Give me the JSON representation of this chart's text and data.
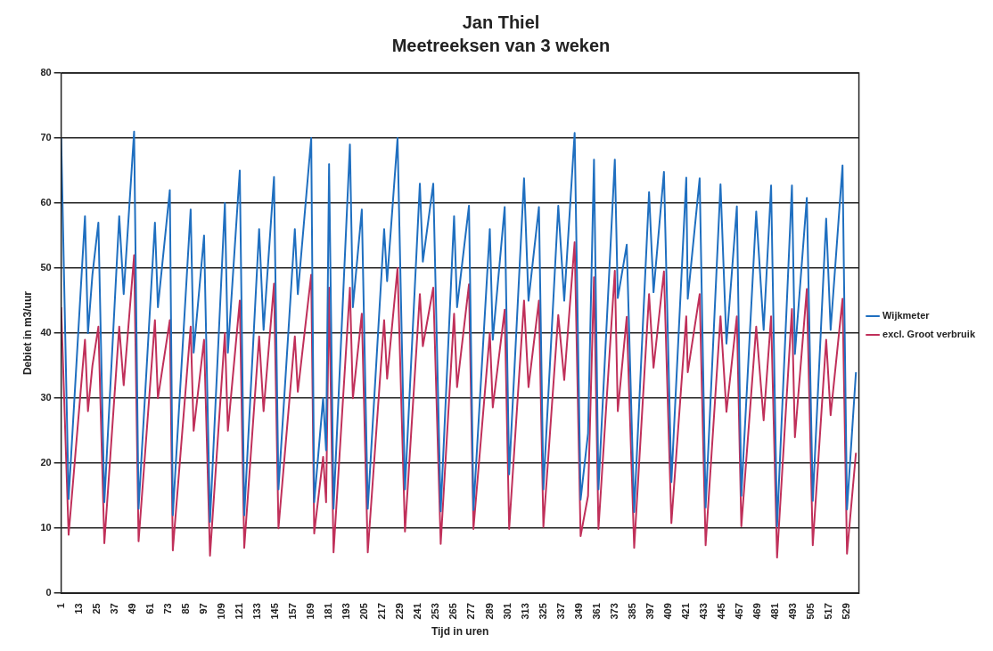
{
  "chart_data": {
    "type": "line",
    "title": "Jan Thiel",
    "subtitle": "Meetreeksen van 3 weken",
    "xlabel": "Tijd in uren",
    "ylabel": "Debiet in m3/uur",
    "x": [
      1,
      6,
      17,
      19,
      22,
      26,
      30,
      40,
      43,
      50,
      53,
      64,
      66,
      74,
      76,
      88,
      90,
      97,
      101,
      111,
      113,
      121,
      124,
      134,
      137,
      144,
      147,
      158,
      160,
      169,
      171,
      177,
      179,
      181,
      184,
      195,
      197,
      203,
      207,
      218,
      220,
      227,
      232,
      242,
      244,
      251,
      256,
      265,
      267,
      275,
      278,
      289,
      291,
      299,
      302,
      312,
      315,
      322,
      325,
      335,
      339,
      346,
      350,
      355,
      359,
      362,
      373,
      375,
      381,
      386,
      396,
      399,
      406,
      411,
      421,
      422,
      430,
      434,
      444,
      448,
      455,
      458,
      468,
      473,
      478,
      482,
      492,
      494,
      502,
      506,
      515,
      518,
      526,
      529,
      535
    ],
    "series": [
      {
        "name": "Wijkmeter",
        "color": "#1f6fc0",
        "values": [
          70,
          14.5,
          58,
          40,
          49,
          57,
          14,
          58,
          46,
          71,
          13,
          57,
          44,
          62,
          12,
          59,
          37,
          55,
          11,
          60,
          37,
          65,
          12,
          56,
          40.5,
          64,
          16,
          56,
          46,
          70,
          14,
          30,
          22,
          66,
          13,
          69,
          44,
          59,
          13,
          56,
          48,
          70,
          16,
          63,
          51,
          63,
          12.6,
          58,
          44,
          59.6,
          12.8,
          56,
          39,
          59.4,
          18.3,
          63.8,
          45,
          59.4,
          16,
          59.6,
          45,
          70.8,
          14.4,
          24.6,
          66.7,
          16,
          66.7,
          45.4,
          53.6,
          12.5,
          61.7,
          46.3,
          64.8,
          17.1,
          63.9,
          45.3,
          63.8,
          13.2,
          62.9,
          38.4,
          59.5,
          15,
          58.7,
          40.5,
          62.7,
          10.3,
          62.7,
          36.8,
          60.8,
          14.2,
          57.6,
          40.5,
          65.8,
          12.9,
          34
        ]
      },
      {
        "name": "excl. Groot verbruik",
        "color": "#c0305a",
        "values": [
          44,
          9,
          39,
          28,
          35,
          41,
          7.7,
          41,
          32,
          52,
          8,
          42,
          30,
          42,
          6.6,
          41,
          25,
          39,
          5.8,
          40,
          25,
          45,
          7,
          39.5,
          28,
          47.6,
          10,
          39.5,
          31,
          49,
          9.2,
          21,
          14,
          47,
          6.3,
          47,
          30,
          43,
          6.3,
          42,
          33,
          50,
          9.5,
          46,
          38,
          47,
          7.6,
          43,
          31.7,
          47.5,
          9.9,
          40,
          28.6,
          43.6,
          9.9,
          45,
          31.7,
          45,
          10.2,
          42.8,
          32.8,
          54,
          8.8,
          15,
          48.6,
          9.9,
          49.6,
          28,
          42.5,
          7,
          46,
          34.7,
          49.5,
          10.8,
          42.6,
          34,
          46,
          7.4,
          42.6,
          27.9,
          42.6,
          10.3,
          41,
          26.6,
          42.6,
          5.5,
          43.7,
          24,
          46.8,
          7.4,
          39,
          27.4,
          45.3,
          6.1,
          21.6
        ]
      }
    ],
    "xlim": [
      1,
      537
    ],
    "xticks": [
      1,
      13,
      25,
      37,
      49,
      61,
      73,
      85,
      97,
      109,
      121,
      133,
      145,
      157,
      169,
      181,
      193,
      205,
      217,
      229,
      241,
      253,
      265,
      277,
      289,
      301,
      313,
      325,
      337,
      349,
      361,
      373,
      385,
      397,
      409,
      421,
      433,
      445,
      457,
      469,
      481,
      493,
      505,
      517,
      529
    ],
    "ylim": [
      0,
      80
    ],
    "yticks": [
      0,
      10,
      20,
      30,
      40,
      50,
      60,
      70,
      80
    ],
    "grid": "y",
    "legend": "right",
    "marker": "none",
    "line_style": "solid"
  }
}
